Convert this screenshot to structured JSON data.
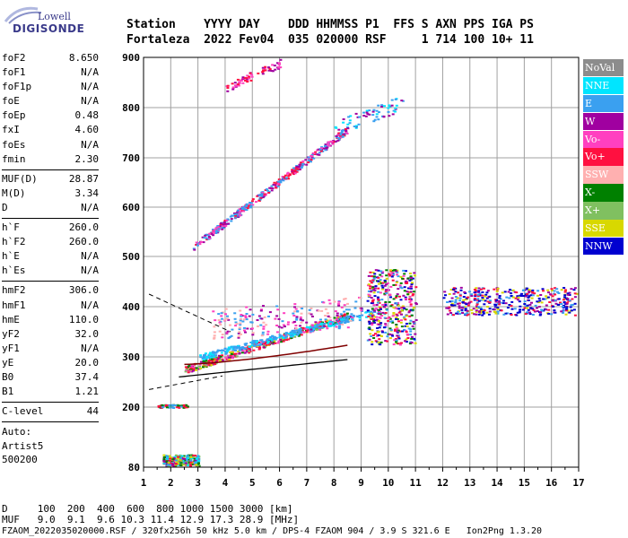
{
  "logo": {
    "line1": "Lowell",
    "line2": "DIGISONDE"
  },
  "header": {
    "labels": "Station    YYYY DAY    DDD HHMMSS P1  FFS S AXN PPS IGA PS",
    "values": "Fortaleza  2022 Fev04  035 020000 RSF     1 714 100 10+ 11"
  },
  "params_block1": [
    {
      "k": "foF2",
      "v": "8.650"
    },
    {
      "k": "foF1",
      "v": "N/A"
    },
    {
      "k": "foF1p",
      "v": "N/A"
    },
    {
      "k": "foE",
      "v": "N/A"
    },
    {
      "k": "foEp",
      "v": "0.48"
    },
    {
      "k": "fxI",
      "v": "4.60"
    },
    {
      "k": "foEs",
      "v": "N/A"
    },
    {
      "k": "fmin",
      "v": "2.30"
    }
  ],
  "params_block2": [
    {
      "k": "MUF(D)",
      "v": "28.87"
    },
    {
      "k": "M(D)",
      "v": "3.34"
    },
    {
      "k": "D",
      "v": "N/A"
    }
  ],
  "params_block3": [
    {
      "k": "h`F",
      "v": "260.0"
    },
    {
      "k": "h`F2",
      "v": "260.0"
    },
    {
      "k": "h`E",
      "v": "N/A"
    },
    {
      "k": "h`Es",
      "v": "N/A"
    }
  ],
  "params_block4": [
    {
      "k": "hmF2",
      "v": "306.0"
    },
    {
      "k": "hmF1",
      "v": "N/A"
    },
    {
      "k": "hmE",
      "v": "110.0"
    },
    {
      "k": "yF2",
      "v": "32.0"
    },
    {
      "k": "yF1",
      "v": "N/A"
    },
    {
      "k": "yE",
      "v": "20.0"
    },
    {
      "k": "B0",
      "v": "37.4"
    },
    {
      "k": "B1",
      "v": "1.21"
    }
  ],
  "params_block5": [
    {
      "k": "C-level",
      "v": "44"
    }
  ],
  "auto": {
    "l1": "Auto:",
    "l2": "Artist5",
    "l3": "500200"
  },
  "legend": [
    {
      "label": "NoVal",
      "color": "#8c8c8c"
    },
    {
      "label": "NNE",
      "color": "#00e5ff"
    },
    {
      "label": "E",
      "color": "#3aa0f0"
    },
    {
      "label": "W",
      "color": "#a000a0"
    },
    {
      "label": "Vo-",
      "color": "#ff40c0"
    },
    {
      "label": "Vo+",
      "color": "#ff1040"
    },
    {
      "label": "SSW",
      "color": "#ffb0b0"
    },
    {
      "label": "X-",
      "color": "#008000"
    },
    {
      "label": "X+",
      "color": "#80c060"
    },
    {
      "label": "SSE",
      "color": "#d8d800"
    },
    {
      "label": "NNW",
      "color": "#0000d0"
    }
  ],
  "chart_data": {
    "type": "scatter",
    "x_ticks": [
      "1",
      "2",
      "3",
      "4",
      "5",
      "6",
      "7",
      "8",
      "9",
      "10",
      "11",
      "12",
      "13",
      "14",
      "15",
      "16",
      "17"
    ],
    "y_ticks": [
      "80",
      "200",
      "300",
      "400",
      "500",
      "600",
      "700",
      "800",
      "900"
    ],
    "xlim": [
      1,
      17
    ],
    "y_axis_values": [
      80,
      200,
      300,
      400,
      500,
      600,
      700,
      800,
      900
    ],
    "grid": true
  },
  "footer": {
    "d_row": "D     100  200  400  600  800 1000 1500 3000 [km]",
    "muf_row": "MUF   9.0  9.1  9.6 10.3 11.4 12.9 17.3 28.9 [MHz]",
    "file_row": "FZAOM_2022035020000.RSF / 320fx256h 50 kHz 5.0 km / DPS-4 FZAOM 904 / 3.9 S 321.6 E   Ion2Png 1.3.20"
  }
}
